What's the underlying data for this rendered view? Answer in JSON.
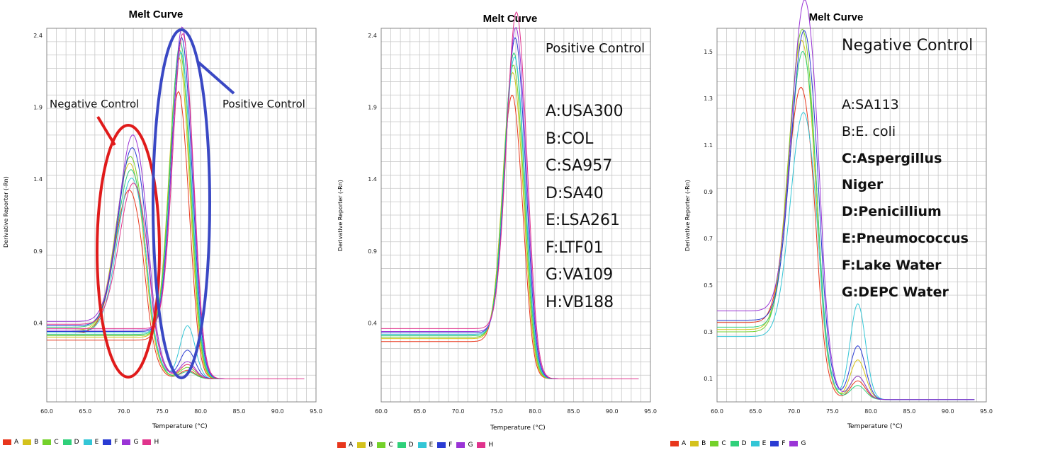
{
  "legend_colors": {
    "A": "#e8361c",
    "B": "#d4c21c",
    "C": "#74d12a",
    "D": "#2fd07a",
    "E": "#33c6d6",
    "F": "#2a3bd3",
    "G": "#9a34d6",
    "H": "#e0338c"
  },
  "chart_data": [
    {
      "type": "line",
      "title": "Melt Curve",
      "xlabel": "Temperature (°C)",
      "ylabel": "Derivative Reporter (-Rn)",
      "xlim": [
        60,
        95
      ],
      "ylim": [
        -0.15,
        2.45
      ],
      "xticks": [
        "60.0",
        "65.0",
        "70.0",
        "75.0",
        "80.0",
        "85.0",
        "90.0",
        "95.0"
      ],
      "yticks": [
        {
          "v": 0.4,
          "label": "0.4"
        },
        {
          "v": 0.9,
          "label": "0.9"
        },
        {
          "v": 1.4,
          "label": "1.4"
        },
        {
          "v": 1.9,
          "label": "1.9"
        },
        {
          "v": 2.4,
          "label": "2.4"
        }
      ],
      "legend": [
        "A",
        "B",
        "C",
        "D",
        "E",
        "F",
        "G",
        "H"
      ],
      "series_groups": {
        "negative": [
          {
            "name": "A",
            "peak": 1.22,
            "base": 0.32,
            "second": 0.06
          },
          {
            "name": "B",
            "peak": 1.4,
            "base": 0.34,
            "second": 0.1
          },
          {
            "name": "C",
            "peak": 1.45,
            "base": 0.33,
            "second": 0.08
          },
          {
            "name": "D",
            "peak": 1.35,
            "base": 0.36,
            "second": 0.05
          },
          {
            "name": "E",
            "peak": 1.3,
            "base": 0.33,
            "second": 0.37
          },
          {
            "name": "F",
            "peak": 1.5,
            "base": 0.37,
            "second": 0.2
          },
          {
            "name": "G",
            "peak": 1.58,
            "base": 0.4,
            "second": 0.12
          },
          {
            "name": "H",
            "peak": 1.25,
            "base": 0.38,
            "second": 0.1
          }
        ],
        "positive": [
          {
            "name": "A",
            "peak": 1.92,
            "base": 0.27
          },
          {
            "name": "B",
            "peak": 2.15,
            "base": 0.29
          },
          {
            "name": "C",
            "peak": 2.2,
            "base": 0.3
          },
          {
            "name": "D",
            "peak": 2.25,
            "base": 0.31
          },
          {
            "name": "E",
            "peak": 2.18,
            "base": 0.32
          },
          {
            "name": "F",
            "peak": 2.28,
            "base": 0.33
          },
          {
            "name": "G",
            "peak": 2.35,
            "base": 0.34
          },
          {
            "name": "H",
            "peak": 2.3,
            "base": 0.35
          }
        ]
      },
      "annotations": {
        "negative": "Negative Control",
        "positive": "Positive Control"
      }
    },
    {
      "type": "line",
      "title": "Melt Curve",
      "xlabel": "Temperature (°C)",
      "ylabel": "Derivative Reporter (-Rn)",
      "xlim": [
        60,
        95
      ],
      "ylim": [
        -0.15,
        2.45
      ],
      "xticks": [
        "60.0",
        "65.0",
        "70.0",
        "75.0",
        "80.0",
        "85.0",
        "90.0",
        "95.0"
      ],
      "yticks": [
        {
          "v": 0.4,
          "label": "0.4"
        },
        {
          "v": 0.9,
          "label": "0.9"
        },
        {
          "v": 1.4,
          "label": "1.4"
        },
        {
          "v": 1.9,
          "label": "1.9"
        },
        {
          "v": 2.4,
          "label": "2.4"
        }
      ],
      "legend": [
        "A",
        "B",
        "C",
        "D",
        "E",
        "F",
        "G",
        "H"
      ],
      "series": [
        {
          "name": "A",
          "peak": 1.9,
          "base": 0.26
        },
        {
          "name": "B",
          "peak": 2.05,
          "base": 0.28
        },
        {
          "name": "C",
          "peak": 2.1,
          "base": 0.29
        },
        {
          "name": "D",
          "peak": 2.18,
          "base": 0.3
        },
        {
          "name": "E",
          "peak": 2.15,
          "base": 0.31
        },
        {
          "name": "F",
          "peak": 2.28,
          "base": 0.32
        },
        {
          "name": "G",
          "peak": 2.35,
          "base": 0.33
        },
        {
          "name": "H",
          "peak": 2.45,
          "base": 0.35
        }
      ],
      "heading": "Positive Control",
      "samples": [
        "A:USA300",
        "B:COL",
        "C:SA957",
        "D:SA40",
        "E:LSA261",
        "F:LTF01",
        "G:VA109",
        "H:VB188"
      ]
    },
    {
      "type": "line",
      "title": "Melt Curve",
      "xlabel": "Temperature (°C)",
      "ylabel": "Derivative Reporter (-Rn)",
      "xlim": [
        60,
        95
      ],
      "ylim": [
        0.0,
        1.6
      ],
      "xticks": [
        "60.0",
        "65.0",
        "70.0",
        "75.0",
        "80.0",
        "85.0",
        "90.0",
        "95.0"
      ],
      "yticks": [
        {
          "v": 0.1,
          "label": "0.1"
        },
        {
          "v": 0.3,
          "label": "0.3"
        },
        {
          "v": 0.5,
          "label": "0.5"
        },
        {
          "v": 0.7,
          "label": "0.7"
        },
        {
          "v": 0.9,
          "label": "0.9"
        },
        {
          "v": 1.1,
          "label": "1.1"
        },
        {
          "v": 1.3,
          "label": "1.3"
        },
        {
          "v": 1.5,
          "label": "1.5"
        }
      ],
      "legend": [
        "A",
        "B",
        "C",
        "D",
        "E",
        "F",
        "G"
      ],
      "series": [
        {
          "name": "A",
          "peak": 1.24,
          "base": 0.33,
          "second": 0.08
        },
        {
          "name": "B",
          "peak": 1.45,
          "base": 0.3,
          "second": 0.17
        },
        {
          "name": "C",
          "peak": 1.5,
          "base": 0.29,
          "second": 0.1
        },
        {
          "name": "D",
          "peak": 1.4,
          "base": 0.31,
          "second": 0.06
        },
        {
          "name": "E",
          "peak": 1.15,
          "base": 0.27,
          "second": 0.41
        },
        {
          "name": "F",
          "peak": 1.48,
          "base": 0.34,
          "second": 0.23
        },
        {
          "name": "G",
          "peak": 1.6,
          "base": 0.38,
          "second": 0.1
        }
      ],
      "heading": "Negative Control",
      "samples": [
        "A:SA113",
        "B:E. coli",
        "C:Aspergillus",
        "Niger",
        "D:Penicillium",
        "E:Pneumococcus",
        "F:Lake Water",
        "G:DEPC Water"
      ]
    }
  ]
}
